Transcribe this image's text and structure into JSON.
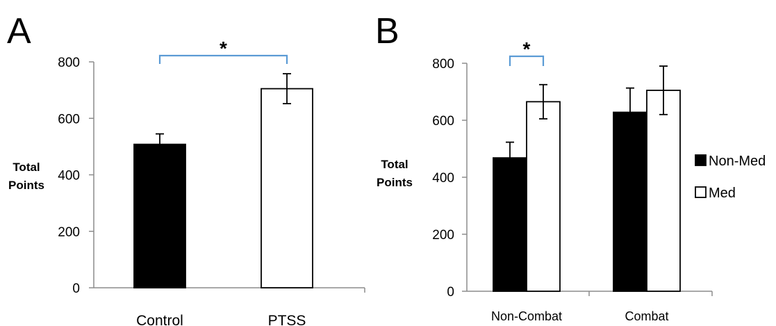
{
  "chart_data": [
    {
      "panel": "A",
      "type": "bar",
      "ylabel": "Total Points",
      "ylim": [
        0,
        800
      ],
      "yticks": [
        0,
        200,
        400,
        600,
        800
      ],
      "categories": [
        "Control",
        "PTSS"
      ],
      "series": [
        {
          "values": [
            508,
            705
          ],
          "errors": [
            37,
            53
          ],
          "color": "#000000",
          "fill": [
            "#000000",
            "#ffffff"
          ]
        }
      ],
      "annotations": [
        {
          "text": "*",
          "between": [
            "Control",
            "PTSS"
          ],
          "color": "#5b9bd5"
        }
      ]
    },
    {
      "panel": "B",
      "type": "bar",
      "ylabel": "Total Points",
      "ylim": [
        0,
        800
      ],
      "yticks": [
        0,
        200,
        400,
        600,
        800
      ],
      "categories": [
        "Non-Combat",
        "Combat"
      ],
      "series": [
        {
          "name": "Non-Med",
          "values": [
            468,
            628
          ],
          "errors": [
            55,
            85
          ],
          "color": "#000000"
        },
        {
          "name": "Med",
          "values": [
            665,
            705
          ],
          "errors": [
            60,
            85
          ],
          "color": "#ffffff"
        }
      ],
      "legend": "right",
      "annotations": [
        {
          "text": "*",
          "category": "Non-Combat",
          "between": [
            "Non-Med",
            "Med"
          ],
          "color": "#5b9bd5"
        }
      ]
    }
  ]
}
